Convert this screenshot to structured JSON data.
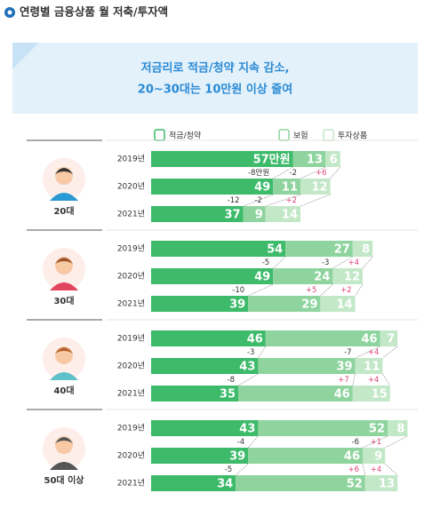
{
  "header": {
    "title": "연령별 금융상품 월 저축/투자액"
  },
  "banner": {
    "lines": [
      "저금리로 적금/청약 지속 감소,",
      "20~30대는 10만원 이상 줄여"
    ]
  },
  "chart_data": {
    "type": "bar",
    "orientation": "horizontal",
    "stacked": true,
    "groups": [
      "20대",
      "30대",
      "40대",
      "50대 이상"
    ],
    "categories": [
      "2019년",
      "2020년",
      "2021년",
      "2019년",
      "2020년",
      "2021년",
      "2019년",
      "2020년",
      "2021년",
      "2019년",
      "2020년",
      "2021년"
    ],
    "series": [
      {
        "name": "적금/청약",
        "color": "#3dba6a",
        "values": [
          57,
          49,
          37,
          54,
          49,
          39,
          46,
          43,
          35,
          43,
          39,
          34
        ],
        "value_labels": [
          "57만원",
          "49",
          "37",
          "54",
          "49",
          "39",
          "46",
          "43",
          "35",
          "43",
          "39",
          "34"
        ],
        "changes": [
          "-8만원",
          "-12",
          "-5",
          "-10",
          "-3",
          "-8",
          "-4",
          "-5"
        ]
      },
      {
        "name": "보험",
        "color": "#8fd49e",
        "values": [
          13,
          11,
          9,
          27,
          24,
          29,
          46,
          39,
          46,
          52,
          46,
          52
        ],
        "changes": [
          "-2",
          "-2",
          "-3",
          "+5",
          "-7",
          "+7",
          "-6",
          "+6"
        ]
      },
      {
        "name": "투자상품",
        "color": "#c3e8c8",
        "values": [
          6,
          12,
          14,
          8,
          12,
          14,
          7,
          11,
          15,
          8,
          9,
          13
        ],
        "changes": [
          "+6",
          "+2",
          "+4",
          "+2",
          "+4",
          "+4",
          "+1",
          "+4"
        ]
      }
    ]
  }
}
